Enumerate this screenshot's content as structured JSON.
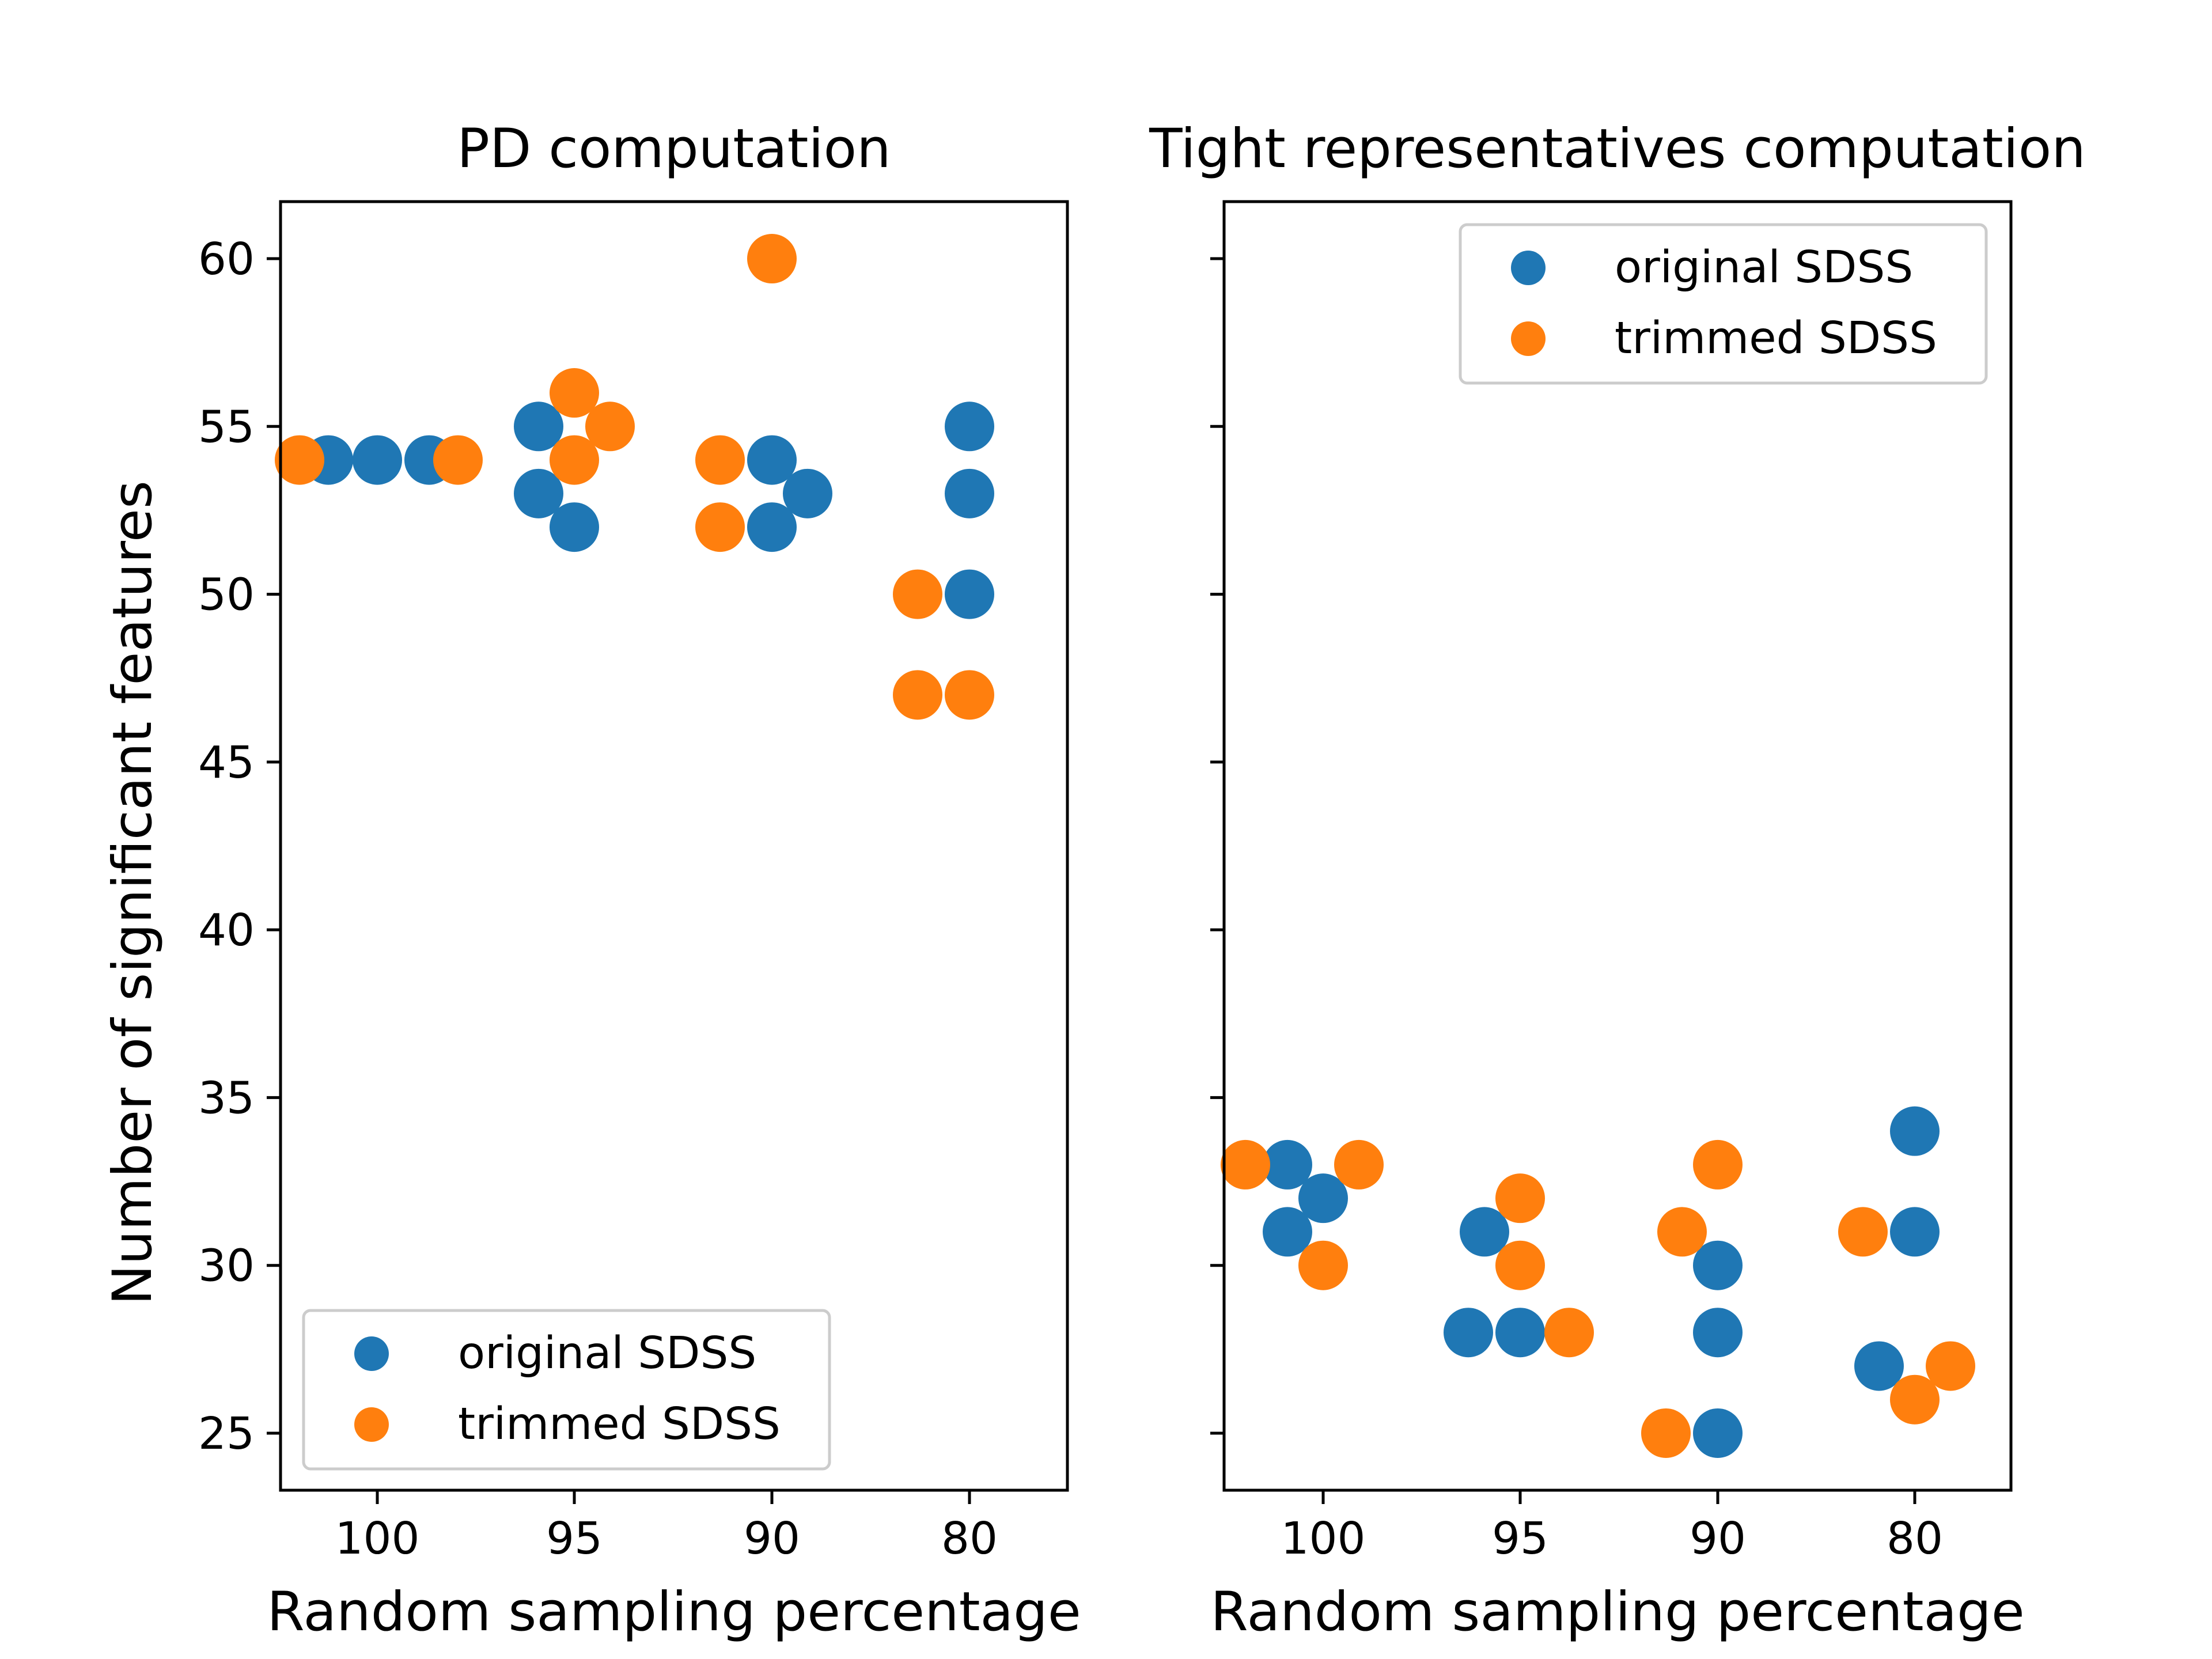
{
  "chart_data": [
    {
      "type": "scatter",
      "title": "PD computation",
      "xlabel": "Random sampling percentage",
      "ylabel": "Number of significant features",
      "x_categories": [
        "100",
        "95",
        "90",
        "80"
      ],
      "yticks": [
        25,
        30,
        35,
        40,
        45,
        50,
        55,
        60
      ],
      "ylim": [
        23.3,
        61.7
      ],
      "legend_position": "lower-left",
      "series": [
        {
          "name": "original SDSS",
          "color": "#1f77b4",
          "points": [
            {
              "x": "100",
              "y": 54
            },
            {
              "x": "100",
              "y": 54
            },
            {
              "x": "100",
              "y": 54
            },
            {
              "x": "95",
              "y": 55
            },
            {
              "x": "95",
              "y": 53
            },
            {
              "x": "95",
              "y": 52
            },
            {
              "x": "90",
              "y": 54
            },
            {
              "x": "90",
              "y": 52
            },
            {
              "x": "90",
              "y": 53
            },
            {
              "x": "80",
              "y": 55
            },
            {
              "x": "80",
              "y": 53
            },
            {
              "x": "80",
              "y": 50
            }
          ]
        },
        {
          "name": "trimmed SDSS",
          "color": "#ff7f0e",
          "points": [
            {
              "x": "100",
              "y": 54
            },
            {
              "x": "100",
              "y": 54
            },
            {
              "x": "95",
              "y": 56
            },
            {
              "x": "95",
              "y": 54
            },
            {
              "x": "95",
              "y": 55
            },
            {
              "x": "90",
              "y": 60
            },
            {
              "x": "90",
              "y": 54
            },
            {
              "x": "90",
              "y": 52
            },
            {
              "x": "80",
              "y": 50
            },
            {
              "x": "80",
              "y": 47
            },
            {
              "x": "80",
              "y": 47
            }
          ]
        }
      ]
    },
    {
      "type": "scatter",
      "title": "Tight representatives computation",
      "xlabel": "Random sampling percentage",
      "ylabel": "",
      "x_categories": [
        "100",
        "95",
        "90",
        "80"
      ],
      "yticks": [
        25,
        30,
        35,
        40,
        45,
        50,
        55,
        60
      ],
      "show_ytick_labels": false,
      "ylim": [
        23.3,
        61.7
      ],
      "legend_position": "upper-right",
      "series": [
        {
          "name": "original SDSS",
          "color": "#1f77b4",
          "points": [
            {
              "x": "100",
              "y": 33
            },
            {
              "x": "100",
              "y": 31
            },
            {
              "x": "100",
              "y": 32
            },
            {
              "x": "95",
              "y": 31
            },
            {
              "x": "95",
              "y": 28
            },
            {
              "x": "95",
              "y": 28
            },
            {
              "x": "90",
              "y": 30
            },
            {
              "x": "90",
              "y": 28
            },
            {
              "x": "90",
              "y": 25
            },
            {
              "x": "80",
              "y": 34
            },
            {
              "x": "80",
              "y": 31
            },
            {
              "x": "80",
              "y": 27
            }
          ]
        },
        {
          "name": "trimmed SDSS",
          "color": "#ff7f0e",
          "points": [
            {
              "x": "100",
              "y": 33
            },
            {
              "x": "100",
              "y": 33
            },
            {
              "x": "100",
              "y": 30
            },
            {
              "x": "95",
              "y": 32
            },
            {
              "x": "95",
              "y": 30
            },
            {
              "x": "95",
              "y": 28
            },
            {
              "x": "90",
              "y": 33
            },
            {
              "x": "90",
              "y": 31
            },
            {
              "x": "90",
              "y": 25
            },
            {
              "x": "80",
              "y": 31
            },
            {
              "x": "80",
              "y": 26
            },
            {
              "x": "80",
              "y": 27
            }
          ]
        }
      ]
    }
  ]
}
